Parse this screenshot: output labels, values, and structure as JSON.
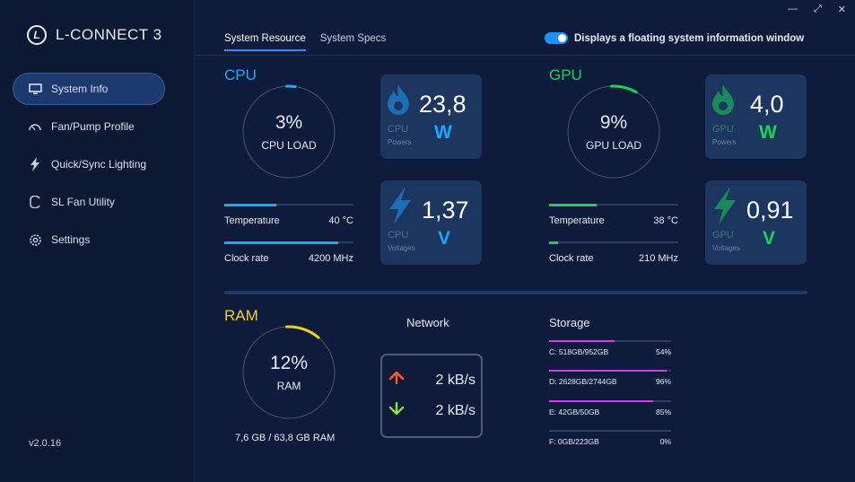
{
  "app": {
    "title": "L-CONNECT 3",
    "logo_letter": "L",
    "version": "v2.0.16"
  },
  "window_controls": [
    "—",
    "⤢",
    "✕"
  ],
  "sidebar": {
    "items": [
      {
        "label": "System Info",
        "icon": "monitor-icon",
        "active": true
      },
      {
        "label": "Fan/Pump Profile",
        "icon": "fan-gauge-icon",
        "active": false
      },
      {
        "label": "Quick/Sync Lighting",
        "icon": "lightning-icon",
        "active": false
      },
      {
        "label": "SL Fan Utility",
        "icon": "fan-utility-icon",
        "active": false
      },
      {
        "label": "Settings",
        "icon": "gear-icon",
        "active": false
      }
    ]
  },
  "tabs": [
    {
      "label": "System Resource",
      "active": true
    },
    {
      "label": "System Specs",
      "active": false
    }
  ],
  "floating_toggle": {
    "label": "Displays a floating system information window",
    "on": true
  },
  "cpu": {
    "title": "CPU",
    "load_pct": "3%",
    "load_label": "CPU LOAD",
    "load_value": 0.03,
    "power": {
      "value": "23,8",
      "unit": "W",
      "line1": "CPU",
      "line2": "Powers"
    },
    "voltage": {
      "value": "1,37",
      "unit": "V",
      "line1": "CPU",
      "line2": "Voltages"
    },
    "temperature": {
      "label": "Temperature",
      "value": "40 °C",
      "fill": 0.4
    },
    "clock": {
      "label": "Clock rate",
      "value": "4200 MHz",
      "fill": 0.88
    },
    "color": "#1ea7ff"
  },
  "gpu": {
    "title": "GPU",
    "load_pct": "9%",
    "load_label": "GPU LOAD",
    "load_value": 0.09,
    "power": {
      "value": "4,0",
      "unit": "W",
      "line1": "GPU",
      "line2": "Powers"
    },
    "voltage": {
      "value": "0,91",
      "unit": "V",
      "line1": "GPU",
      "line2": "Voltages"
    },
    "temperature": {
      "label": "Temperature",
      "value": "38 °C",
      "fill": 0.37
    },
    "clock": {
      "label": "Clock rate",
      "value": "210 MHz",
      "fill": 0.07
    },
    "color": "#19d45a"
  },
  "ram": {
    "title": "RAM",
    "load_pct": "12%",
    "load_label": "RAM",
    "load_value": 0.12,
    "usage": "7,6 GB / 63,8 GB RAM",
    "color": "#f2d21b"
  },
  "network": {
    "title": "Network",
    "upload": "2 kB/s",
    "download": "2 kB/s"
  },
  "storage": {
    "title": "Storage",
    "drives": [
      {
        "label": "C: 518GB/952GB",
        "pct": "54%",
        "fill": 0.54
      },
      {
        "label": "D: 2628GB/2744GB",
        "pct": "96%",
        "fill": 0.96
      },
      {
        "label": "E: 42GB/50GB",
        "pct": "85%",
        "fill": 0.85
      },
      {
        "label": "F: 0GB/223GB",
        "pct": "0%",
        "fill": 0
      }
    ]
  },
  "colors": {
    "background": "#0f1b3a",
    "sidebar": "#0d1833",
    "card": "#1c365f",
    "accent": "#1e90ff",
    "storage_bar": "#d63cf0",
    "upload_arrow": "#ff5a2a",
    "download_arrow": "#8ee23a"
  }
}
